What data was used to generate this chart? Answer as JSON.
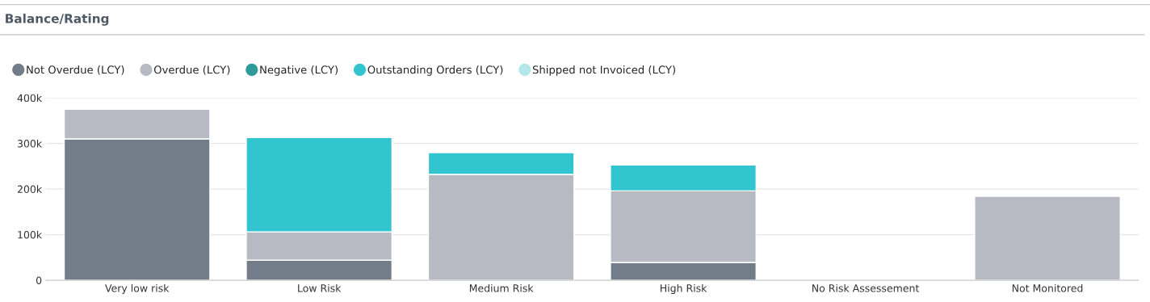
{
  "chart_data": {
    "type": "bar",
    "title": "Balance/Rating",
    "stacked": true,
    "categories": [
      "Very low risk",
      "Low Risk",
      "Medium Risk",
      "High Risk",
      "No Risk Assessement",
      "Not Monitored"
    ],
    "series": [
      {
        "name": "Not Overdue (LCY)",
        "color": "#737d8a",
        "values": [
          310000,
          44000,
          null,
          39000,
          null,
          null
        ]
      },
      {
        "name": "Overdue (LCY)",
        "color": "#b8bac3",
        "values": [
          65000,
          62000,
          232000,
          157000,
          null,
          184000
        ]
      },
      {
        "name": "Negative (LCY)",
        "color": "#2e9a9a",
        "values": [
          null,
          null,
          null,
          null,
          null,
          null
        ]
      },
      {
        "name": "Outstanding Orders (LCY)",
        "color": "#33c5cf",
        "values": [
          null,
          207000,
          48000,
          57000,
          null,
          null
        ]
      },
      {
        "name": "Shipped not Invoiced (LCY)",
        "color": "#b3e7ec",
        "values": [
          null,
          null,
          null,
          null,
          null,
          null
        ]
      }
    ],
    "ylim": [
      0,
      400000
    ],
    "yticks": [
      0,
      {
        "value": 100000,
        "label": "100k"
      },
      {
        "value": 200000,
        "label": "200k"
      },
      {
        "value": 300000,
        "label": "300k"
      },
      {
        "value": 400000,
        "label": "400k"
      }
    ],
    "grid": "y",
    "legend": "top left",
    "marker": "circle"
  }
}
